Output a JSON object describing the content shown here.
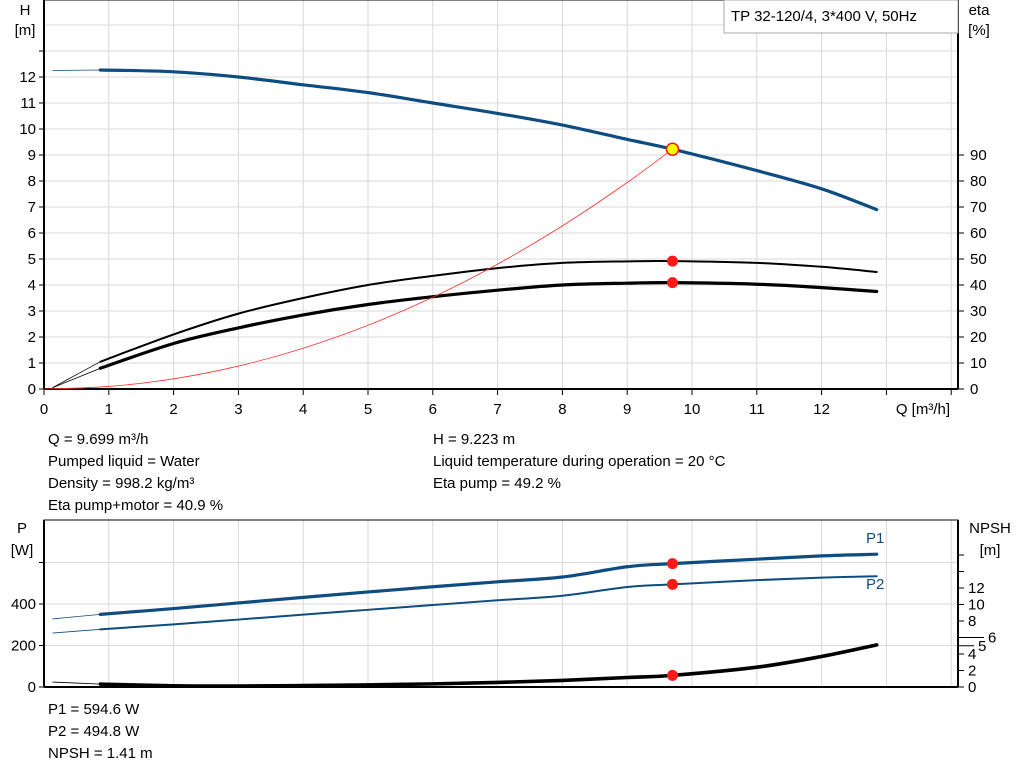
{
  "chart_data": [
    {
      "type": "line",
      "legend_box": "TP 32-120/4, 3*400 V, 50Hz",
      "xlabel": "Q [m³/h]",
      "ylabel_left": [
        "H",
        "[m]"
      ],
      "ylabel_right": [
        "eta",
        "[%]"
      ],
      "xlim": [
        0,
        14
      ],
      "ylim_left": [
        0,
        15
      ],
      "ylim_right": [
        0,
        150
      ],
      "x_ticks": [
        "0",
        "1",
        "2",
        "3",
        "4",
        "5",
        "6",
        "7",
        "8",
        "9",
        "10",
        "11",
        "12"
      ],
      "y_left_ticks": [
        "0",
        "1",
        "2",
        "3",
        "4",
        "5",
        "6",
        "7",
        "8",
        "9",
        "10",
        "11",
        "12"
      ],
      "y_right_ticks": [
        "0",
        "10",
        "20",
        "30",
        "40",
        "50",
        "60",
        "70",
        "80",
        "90"
      ],
      "grid": true,
      "colors": {
        "head": "#0f4c81",
        "eta": "#000000",
        "system": "#ff0000",
        "duty_point": "#ffff00",
        "marker": "#ff0000"
      },
      "series": [
        {
          "key": "H",
          "axis": "left",
          "x": [
            0.87,
            2,
            3,
            4,
            5,
            6,
            7,
            8,
            9,
            9.7,
            11,
            12,
            12.85
          ],
          "y": [
            12.27,
            12.2,
            12.0,
            11.7,
            11.4,
            11.0,
            10.6,
            10.15,
            9.6,
            9.223,
            8.4,
            7.7,
            6.9
          ],
          "extension": {
            "x": [
              0.13,
              0.87
            ],
            "y": [
              12.25,
              12.27
            ]
          }
        },
        {
          "key": "eta_pump",
          "axis": "right",
          "x": [
            0.87,
            2,
            3,
            4,
            5,
            6,
            7,
            8,
            9,
            9.7,
            11,
            12,
            12.85
          ],
          "y": [
            10.5,
            21,
            29,
            35,
            40,
            43.5,
            46.5,
            48.5,
            49.1,
            49.2,
            48.5,
            47,
            45
          ],
          "extension": {
            "x": [
              0.13,
              0.87
            ],
            "y": [
              0.5,
              10.5
            ]
          }
        },
        {
          "key": "eta_pump_motor",
          "axis": "right",
          "x": [
            0.87,
            2,
            3,
            4,
            5,
            6,
            7,
            8,
            9,
            9.7,
            11,
            12,
            12.85
          ],
          "y": [
            8,
            17.5,
            23.5,
            28.5,
            32.5,
            35.5,
            38,
            40,
            40.7,
            40.9,
            40.3,
            39,
            37.5
          ],
          "extension": {
            "x": [
              0.13,
              0.87
            ],
            "y": [
              0.5,
              8
            ]
          }
        },
        {
          "key": "system_curve",
          "axis": "left",
          "x": [
            0,
            1,
            2,
            3,
            4,
            5,
            6,
            7,
            8,
            9,
            9.699
          ],
          "y": [
            0,
            0.098,
            0.392,
            0.882,
            1.569,
            2.451,
            3.529,
            4.804,
            6.275,
            7.942,
            9.223
          ]
        }
      ],
      "duty_point": {
        "Q": 9.699,
        "H": 9.223,
        "eta_pump": 49.2,
        "eta_pump_motor": 40.9
      }
    },
    {
      "type": "line",
      "ylabel_left": [
        "P",
        "[W]"
      ],
      "ylabel_right": [
        "NPSH",
        "[m]"
      ],
      "xlim": [
        0,
        14
      ],
      "ylim_left": [
        0,
        800
      ],
      "y_left_ticks": [
        "0",
        "200",
        "400"
      ],
      "y_left_unlabeled_ticks": [
        600
      ],
      "y_right_ticks": [
        "0",
        "2",
        "4",
        "5",
        "6",
        "8",
        "10",
        "12"
      ],
      "y_right_unlabeled_ticks": [
        14,
        16
      ],
      "grid": true,
      "colors": {
        "P1": "#0f4c81",
        "P2": "#0f4c81",
        "NPSH": "#000000",
        "marker": "#ff0000"
      },
      "series": [
        {
          "name": "P1",
          "axis": "left",
          "x": [
            0.87,
            2,
            3,
            4,
            5,
            6,
            7,
            8,
            9,
            9.7,
            11,
            12,
            12.85
          ],
          "y": [
            350,
            378,
            405,
            432,
            458,
            483,
            507,
            530,
            579.5,
            594.6,
            616,
            632,
            640
          ],
          "extension": {
            "x": [
              0.13,
              0.87
            ],
            "y": [
              328,
              350
            ]
          }
        },
        {
          "name": "P2",
          "axis": "left",
          "x": [
            0.87,
            2,
            3,
            4,
            5,
            6,
            7,
            8,
            9,
            9.7,
            11,
            12,
            12.85
          ],
          "y": [
            278,
            302,
            325,
            349,
            372,
            395,
            418,
            440,
            482,
            494.8,
            515,
            527,
            534
          ],
          "extension": {
            "x": [
              0.13,
              0.87
            ],
            "y": [
              260,
              278
            ]
          }
        },
        {
          "key": "NPSH",
          "axis": "right",
          "x": [
            0.87,
            2,
            3,
            4,
            5,
            6,
            7,
            8,
            9,
            9.7,
            11,
            12,
            12.85
          ],
          "y": [
            0.35,
            0.15,
            0.12,
            0.17,
            0.25,
            0.38,
            0.55,
            0.8,
            1.15,
            1.41,
            2.4,
            3.7,
            5.1
          ],
          "extension": {
            "x": [
              0.13,
              0.87
            ],
            "y": [
              0.6,
              0.35
            ]
          }
        }
      ],
      "duty_point": {
        "Q": 9.699,
        "P1": 594.6,
        "P2": 494.8,
        "NPSH": 1.41
      }
    }
  ],
  "readout": {
    "q": "Q = 9.699 m³/h",
    "liquid": "Pumped liquid = Water",
    "density": "Density = 998.2 kg/m³",
    "eta_pm": "Eta pump+motor = 40.9 %",
    "h": "H = 9.223 m",
    "temp": "Liquid temperature during operation = 20 °C",
    "eta_pump": "Eta pump = 49.2 %"
  },
  "power_readout": {
    "p1": "P1 = 594.6 W",
    "p2": "P2 = 494.8 W",
    "npsh": "NPSH = 1.41 m"
  }
}
